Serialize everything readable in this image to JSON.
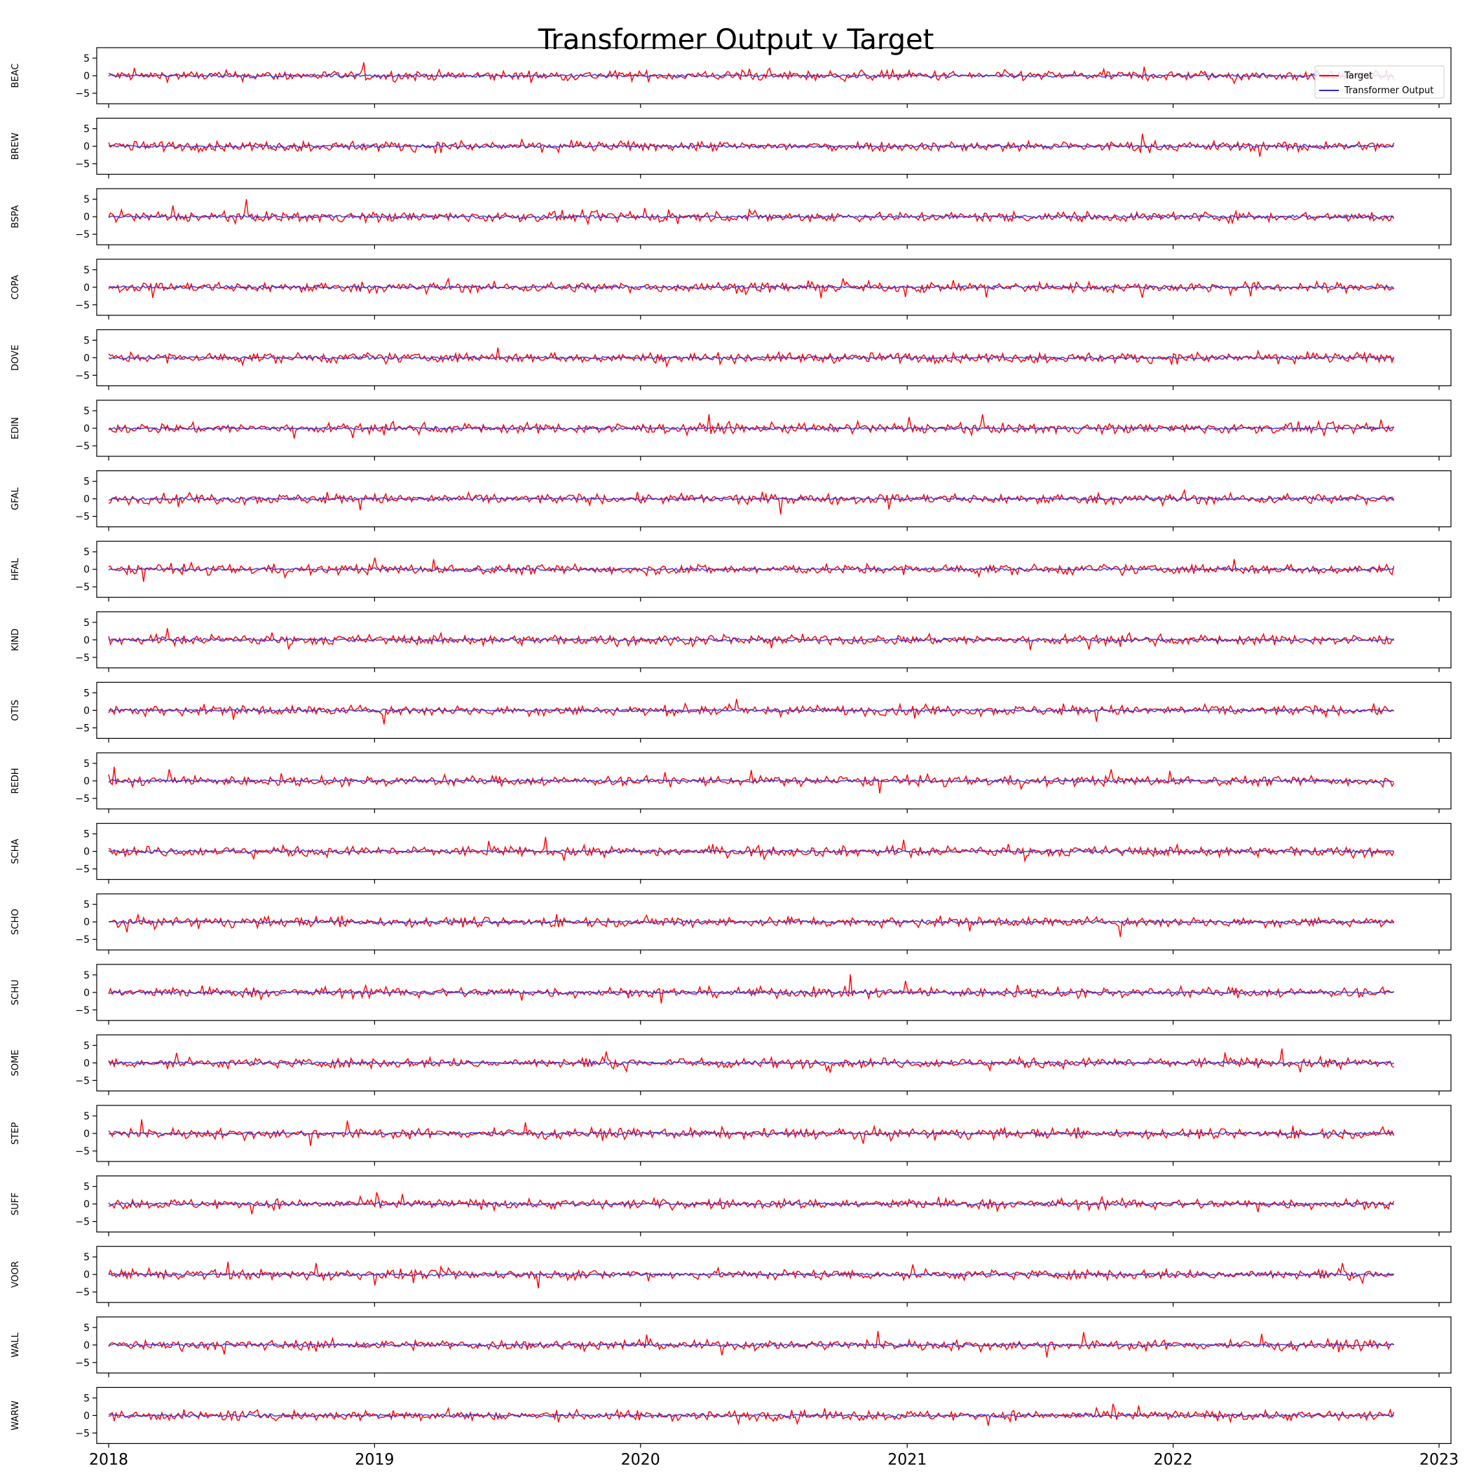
{
  "chart_data": {
    "type": "line",
    "title": "Transformer Output v Target",
    "legend": {
      "placement": "top-right",
      "entries": [
        {
          "name": "Target",
          "color": "#ff0000"
        },
        {
          "name": "Transformer Output",
          "color": "#2b2bd6"
        }
      ]
    },
    "x_axis": {
      "ticks": [
        "2018",
        "2019",
        "2020",
        "2021",
        "2022",
        "2023"
      ],
      "range": [
        "2018-01-01",
        "2023-01-01"
      ],
      "data_range": [
        "2018-01-01",
        "2022-10-31"
      ]
    },
    "y_axis": {
      "ticks": [
        "5",
        "0",
        "−5"
      ],
      "tick_values": [
        5,
        0,
        -5
      ],
      "range": [
        -8,
        8
      ]
    },
    "grid": false,
    "series_colors": {
      "target": "#ff0000",
      "output": "#2b2bd6"
    },
    "panels": [
      {
        "label": "BEAC",
        "target_range": [
          -5,
          7
        ],
        "output_range": [
          -1,
          1
        ]
      },
      {
        "label": "BREW",
        "target_range": [
          -5,
          5
        ],
        "output_range": [
          -1,
          1
        ]
      },
      {
        "label": "BSPA",
        "target_range": [
          -5,
          5
        ],
        "output_range": [
          -1,
          1
        ]
      },
      {
        "label": "COPA",
        "target_range": [
          -4,
          4
        ],
        "output_range": [
          -1,
          1
        ]
      },
      {
        "label": "DOVE",
        "target_range": [
          -4,
          4
        ],
        "output_range": [
          -1,
          1
        ]
      },
      {
        "label": "EDIN",
        "target_range": [
          -4,
          4
        ],
        "output_range": [
          -1,
          1
        ]
      },
      {
        "label": "GFAL",
        "target_range": [
          -5,
          5
        ],
        "output_range": [
          -1,
          1
        ]
      },
      {
        "label": "HFAL",
        "target_range": [
          -4,
          7
        ],
        "output_range": [
          -1,
          1
        ]
      },
      {
        "label": "KIND",
        "target_range": [
          -5,
          6
        ],
        "output_range": [
          -1,
          1
        ]
      },
      {
        "label": "OTIS",
        "target_range": [
          -4,
          7
        ],
        "output_range": [
          -1,
          1
        ]
      },
      {
        "label": "REDH",
        "target_range": [
          -4,
          4
        ],
        "output_range": [
          -1,
          1
        ]
      },
      {
        "label": "SCHA",
        "target_range": [
          -5,
          6
        ],
        "output_range": [
          -1,
          1
        ]
      },
      {
        "label": "SCHO",
        "target_range": [
          -5,
          6
        ],
        "output_range": [
          -1,
          1
        ]
      },
      {
        "label": "SCHU",
        "target_range": [
          -5,
          7
        ],
        "output_range": [
          -1,
          1
        ]
      },
      {
        "label": "SOME",
        "target_range": [
          -5,
          7
        ],
        "output_range": [
          -1,
          1
        ]
      },
      {
        "label": "STEP",
        "target_range": [
          -4,
          4
        ],
        "output_range": [
          -1,
          1
        ]
      },
      {
        "label": "SUFF",
        "target_range": [
          -6,
          5
        ],
        "output_range": [
          -1,
          1
        ]
      },
      {
        "label": "VOOR",
        "target_range": [
          -4,
          5
        ],
        "output_range": [
          -1,
          1
        ]
      },
      {
        "label": "WALL",
        "target_range": [
          -5,
          4
        ],
        "output_range": [
          -1,
          1
        ]
      },
      {
        "label": "WARW",
        "target_range": [
          -8,
          5
        ],
        "output_range": [
          -1,
          1
        ]
      }
    ]
  }
}
